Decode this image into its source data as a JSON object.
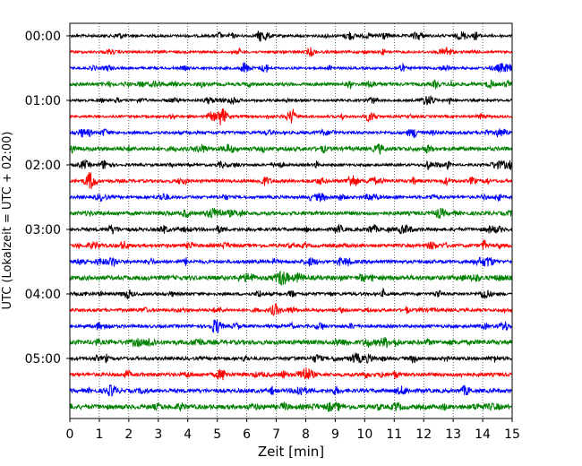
{
  "chart_data": {
    "type": "line",
    "subtype": "seismogram-helicorder",
    "xlabel": "Zeit  [min]",
    "ylabel": "UTC (Lokalzeit = UTC + 02:00)",
    "xlim": [
      0,
      15
    ],
    "x_ticks": [
      0,
      1,
      2,
      3,
      4,
      5,
      6,
      7,
      8,
      9,
      10,
      11,
      12,
      13,
      14,
      15
    ],
    "x_tick_labels": [
      "0",
      "1",
      "2",
      "3",
      "4",
      "5",
      "6",
      "7",
      "8",
      "9",
      "10",
      "11",
      "12",
      "13",
      "14",
      "15"
    ],
    "grid": {
      "x": "dotted-vertical",
      "y": false
    },
    "trace_interval_minutes": 15,
    "trace_count": 24,
    "trace_colors": [
      "#000000",
      "#ff0000",
      "#0000ff",
      "#008000"
    ],
    "trace_color_cycle": [
      "black",
      "red",
      "blue",
      "green"
    ],
    "y_ticks": [
      {
        "trace_index": 0,
        "label": "00:00"
      },
      {
        "trace_index": 4,
        "label": "01:00"
      },
      {
        "trace_index": 8,
        "label": "02:00"
      },
      {
        "trace_index": 12,
        "label": "03:00"
      },
      {
        "trace_index": 16,
        "label": "04:00"
      },
      {
        "trace_index": 20,
        "label": "05:00"
      }
    ],
    "events": [
      {
        "trace_index": 9,
        "minute": 0.7,
        "amplitude": 2.2
      },
      {
        "trace_index": 8,
        "minute": 1.2,
        "amplitude": 1.5
      },
      {
        "trace_index": 0,
        "minute": 6.6,
        "amplitude": 1.5
      },
      {
        "trace_index": 4,
        "minute": 12.2,
        "amplitude": 1.4
      },
      {
        "trace_index": 21,
        "minute": 7.9,
        "amplitude": 1.5
      },
      {
        "trace_index": 22,
        "minute": 7.8,
        "amplitude": 1.6
      },
      {
        "trace_index": 20,
        "minute": 9.7,
        "amplitude": 1.5
      },
      {
        "trace_index": 14,
        "minute": 14.2,
        "amplitude": 1.4
      },
      {
        "trace_index": 0,
        "minute": 13.3,
        "amplitude": 1.3
      },
      {
        "trace_index": 10,
        "minute": 8.5,
        "amplitude": 1.2
      }
    ]
  }
}
